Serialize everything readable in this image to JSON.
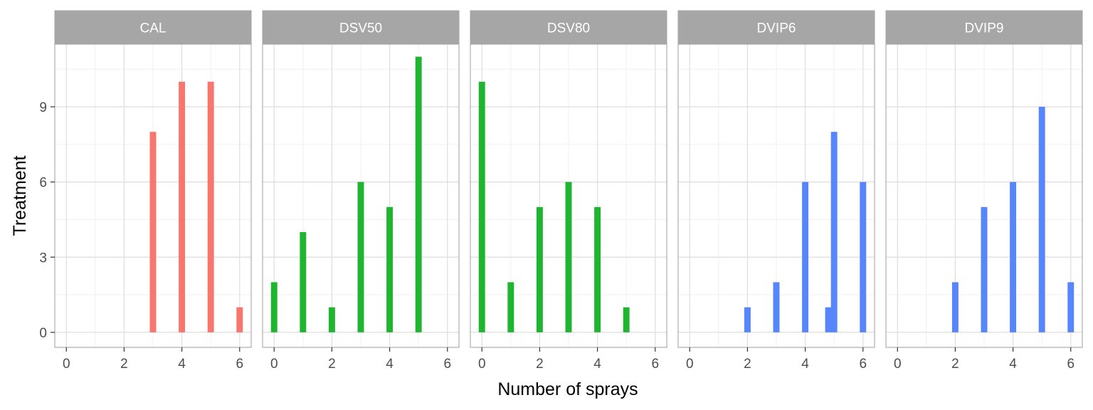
{
  "chart_data": {
    "type": "bar",
    "title": "",
    "xlabel": "Number of sprays",
    "ylabel": "Treatment",
    "xlim": [
      -0.4,
      6.4
    ],
    "ylim": [
      -0.6,
      11.5
    ],
    "x_ticks": [
      0,
      2,
      4,
      6
    ],
    "y_ticks": [
      0,
      3,
      6,
      9
    ],
    "grid": true,
    "legend": "none",
    "bar_width": 0.22,
    "facets": [
      {
        "name": "CAL",
        "color": "#F8766D",
        "bars": [
          {
            "x": 3,
            "value": 8
          },
          {
            "x": 4,
            "value": 10
          },
          {
            "x": 5,
            "value": 10
          },
          {
            "x": 6,
            "value": 1
          }
        ]
      },
      {
        "name": "DSV50",
        "color": "#1FB531",
        "bars": [
          {
            "x": 0,
            "value": 2
          },
          {
            "x": 1,
            "value": 4
          },
          {
            "x": 2,
            "value": 1
          },
          {
            "x": 3,
            "value": 6
          },
          {
            "x": 4,
            "value": 5
          },
          {
            "x": 5,
            "value": 11
          }
        ]
      },
      {
        "name": "DSV80",
        "color": "#1FB531",
        "bars": [
          {
            "x": 0,
            "value": 10
          },
          {
            "x": 1,
            "value": 2
          },
          {
            "x": 2,
            "value": 5
          },
          {
            "x": 3,
            "value": 6
          },
          {
            "x": 4,
            "value": 5
          },
          {
            "x": 5,
            "value": 1
          }
        ]
      },
      {
        "name": "DVIP6",
        "color": "#5685FC",
        "bars": [
          {
            "x": 2,
            "value": 1
          },
          {
            "x": 3,
            "value": 2
          },
          {
            "x": 4,
            "value": 6
          },
          {
            "x": 4.8,
            "value": 1
          },
          {
            "x": 5,
            "value": 8
          },
          {
            "x": 6,
            "value": 6
          }
        ]
      },
      {
        "name": "DVIP9",
        "color": "#5685FC",
        "bars": [
          {
            "x": 2,
            "value": 2
          },
          {
            "x": 3,
            "value": 5
          },
          {
            "x": 4,
            "value": 6
          },
          {
            "x": 5,
            "value": 9
          },
          {
            "x": 6,
            "value": 2
          }
        ]
      }
    ]
  }
}
